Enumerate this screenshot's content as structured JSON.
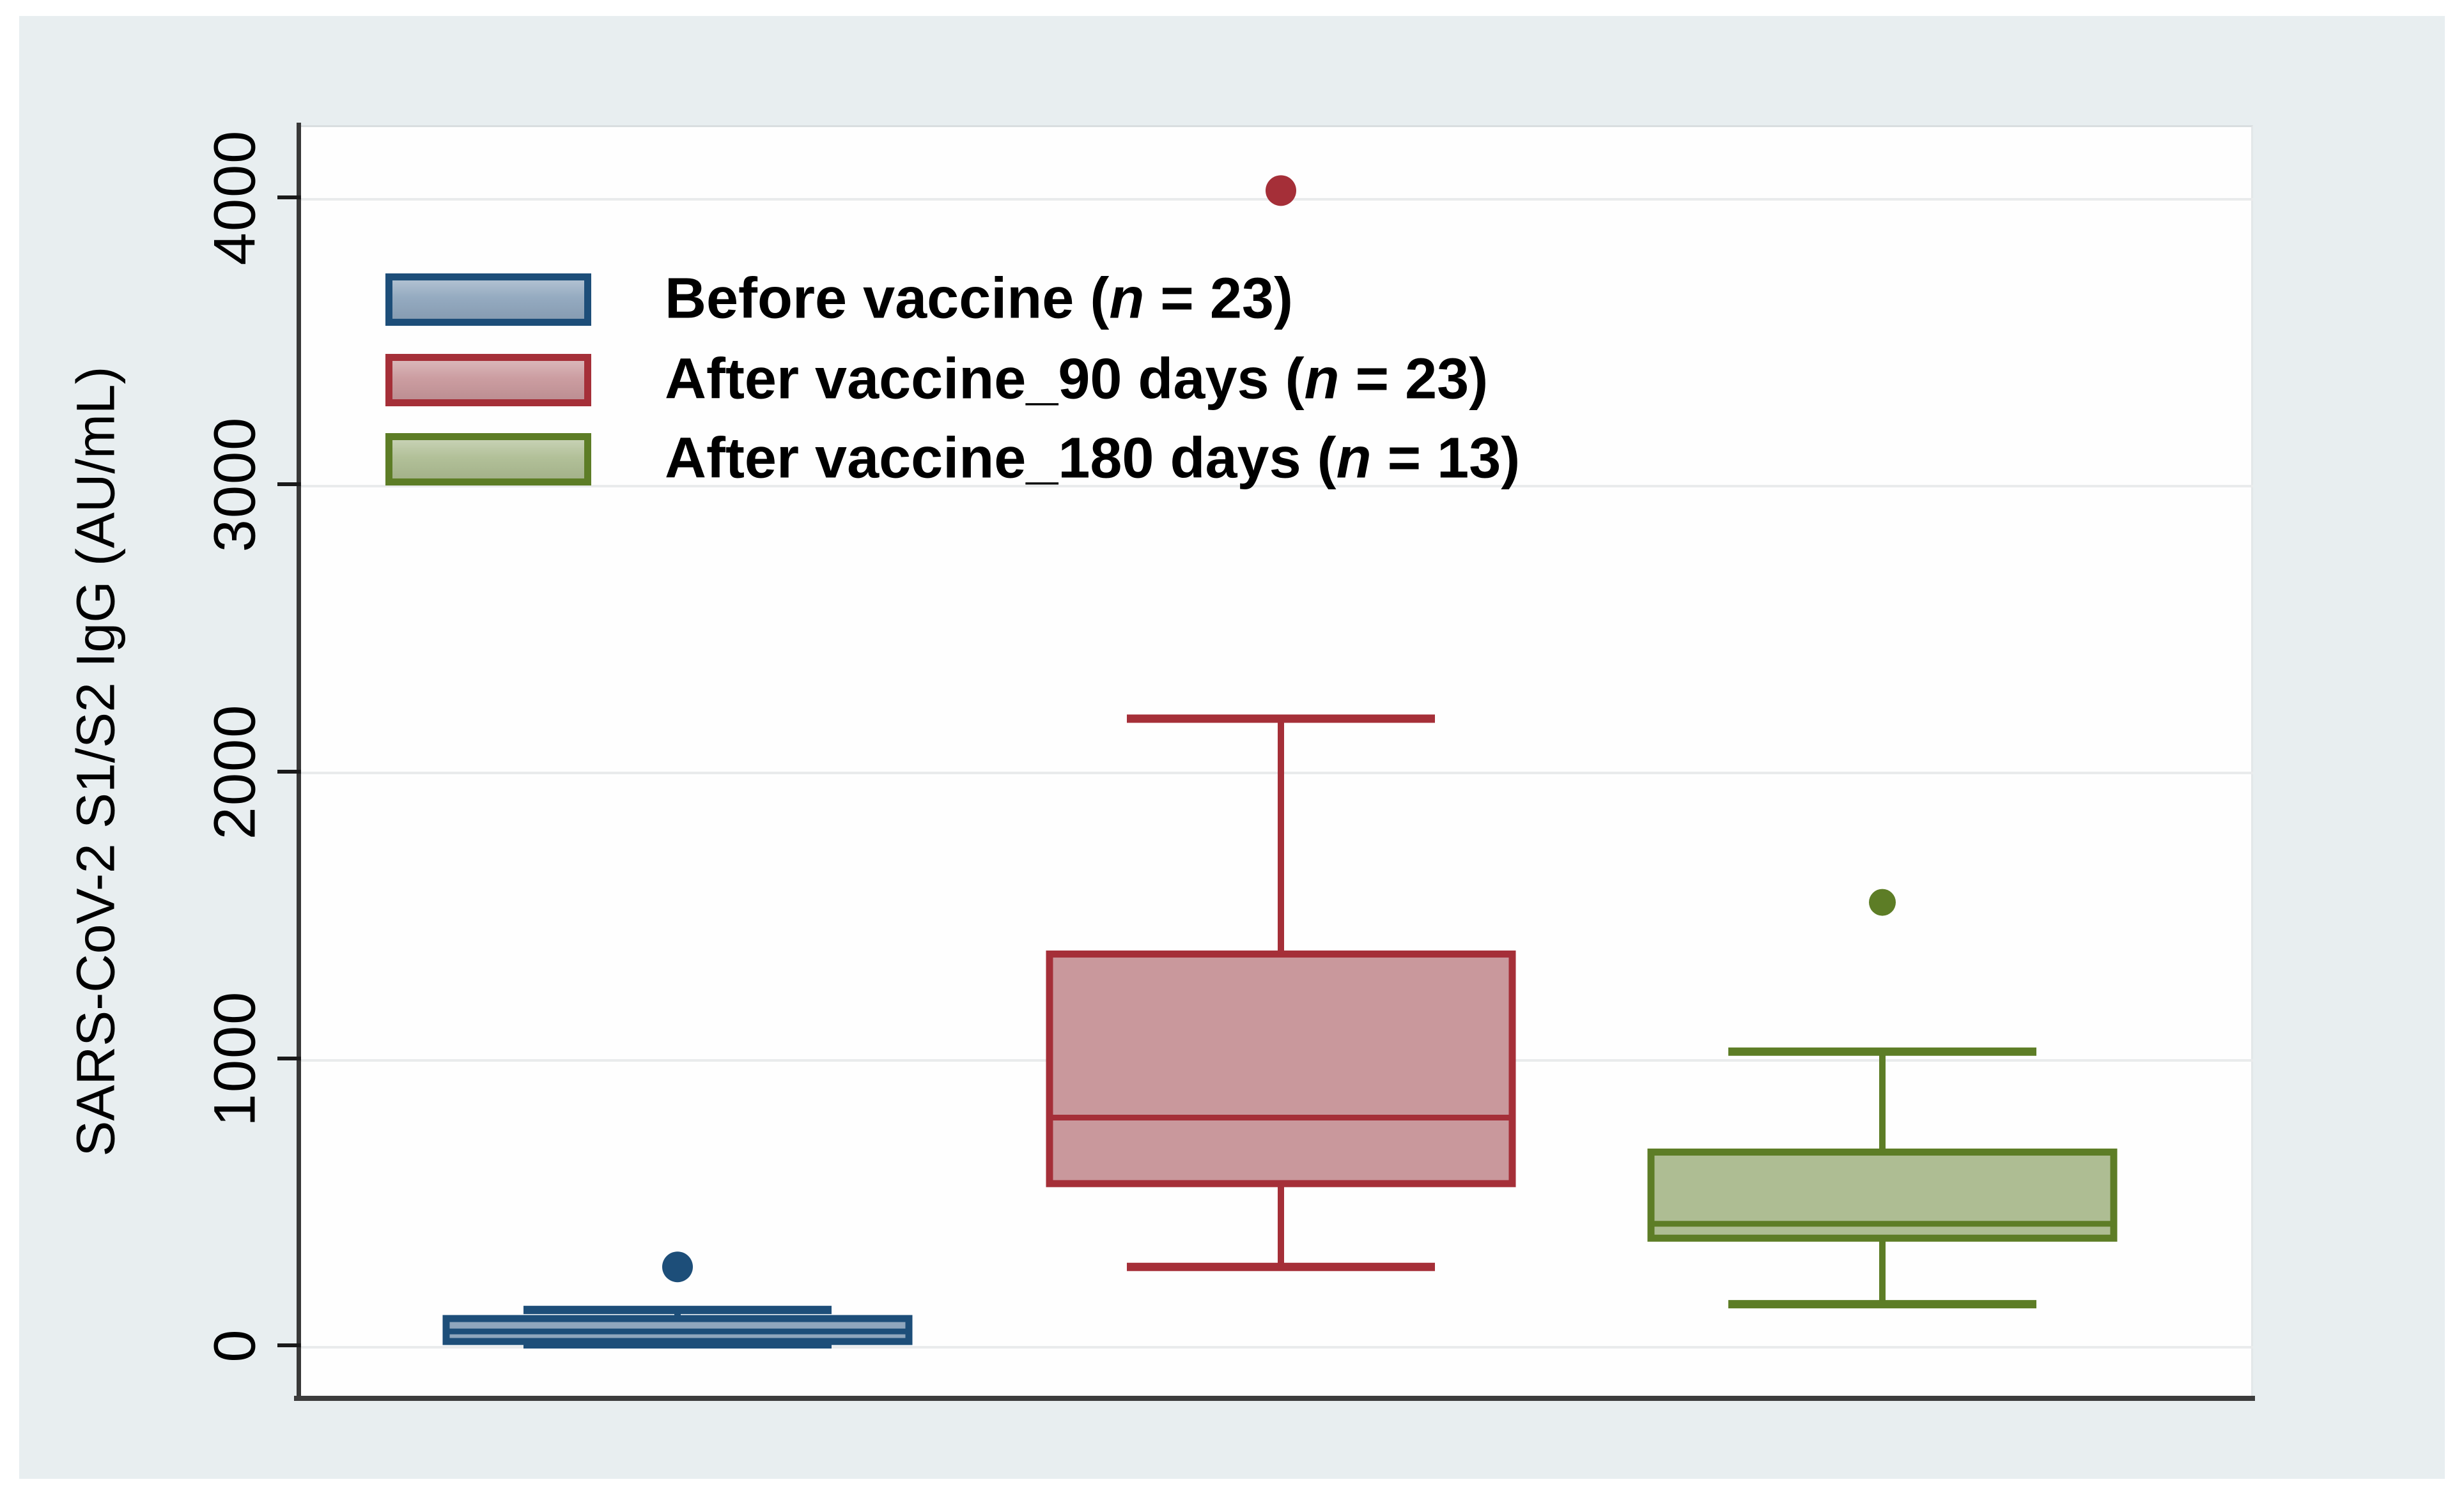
{
  "figure": {
    "background_color": "#e8eef0",
    "plot_background_color": "#fefefe",
    "gridline_color": "#e9ebec",
    "axis_line_color": "#3c3c3c"
  },
  "y_axis": {
    "title": "SARS-CoV-2 S1/S2 IgG (AU/mL)",
    "tick_labels": [
      "0",
      "1000",
      "2000",
      "3000",
      "4000"
    ]
  },
  "legend": {
    "items": [
      {
        "prefix": "Before vaccine (",
        "n": "n",
        "suffix": " = 23)",
        "fill": "#8fa6bd",
        "border": "#1d4e79"
      },
      {
        "prefix": "After vaccine_90 days (",
        "n": "n",
        "suffix": " = 23)",
        "fill": "#c9989c",
        "border": "#a52f38"
      },
      {
        "prefix": "After vaccine_180 days (",
        "n": "n",
        "suffix": " = 13)",
        "fill": "#aebd93",
        "border": "#5d7d26"
      }
    ]
  },
  "chart_data": {
    "type": "box",
    "title": "",
    "xlabel": "",
    "ylabel": "SARS-CoV-2 S1/S2 IgG (AU/mL)",
    "y_ticks": [
      0,
      1000,
      2000,
      3000,
      4000
    ],
    "ylim": [
      -182,
      4254
    ],
    "grid": "horizontal",
    "legend_position": "upper-left-inside",
    "series": [
      {
        "id": "before-vaccine",
        "name": "Before vaccine (n = 23)",
        "whisker_low": 10,
        "q1": 20,
        "median": 55,
        "q3": 100,
        "whisker_high": 130,
        "outliers": [
          280
        ],
        "fill": "#8fa6bd",
        "border": "#1d4e79"
      },
      {
        "id": "after-vaccine-90-days",
        "name": "After vaccine_90 days (n = 23)",
        "whisker_low": 280,
        "q1": 570,
        "median": 800,
        "q3": 1370,
        "whisker_high": 2190,
        "outliers": [
          4030
        ],
        "fill": "#c9989c",
        "border": "#a52f38"
      },
      {
        "id": "after-vaccine-180-days",
        "name": "After vaccine_180 days (n = 13)",
        "whisker_low": 150,
        "q1": 380,
        "median": 430,
        "q3": 680,
        "whisker_high": 1030,
        "outliers": [
          1550
        ],
        "fill": "#aebd93",
        "border": "#5d7d26"
      }
    ]
  }
}
